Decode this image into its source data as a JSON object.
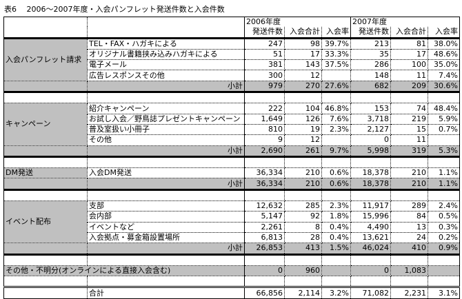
{
  "title": "表6　 2006～2007年度・入会パンフレット発送件数と入会件数",
  "header": {
    "years": [
      "2006年度",
      "2007年度"
    ],
    "columns": [
      "発送件数",
      "入会合計",
      "入会率",
      "発送件数",
      "入会合計",
      "入会率"
    ]
  },
  "colors": {
    "shade": "#c0c0c0"
  },
  "groups": [
    {
      "label": "入会パンフレット請求",
      "rows": [
        [
          "TEL・FAX・ハガキによる",
          "247",
          "98",
          "39.7%",
          "213",
          "81",
          "38.0%"
        ],
        [
          "オリジナル書籍挟み込みハガキによる",
          "51",
          "17",
          "33.3%",
          "35",
          "17",
          "48.6%"
        ],
        [
          "電子メール",
          "381",
          "143",
          "37.5%",
          "286",
          "100",
          "35.0%"
        ],
        [
          "広告レスポンスその他",
          "300",
          "12",
          "",
          "148",
          "11",
          "7.4%"
        ]
      ],
      "subtotal": [
        "小計",
        "979",
        "270",
        "27.6%",
        "682",
        "209",
        "30.6%"
      ]
    },
    {
      "label": "キャンペーン",
      "rows": [
        [
          "紹介キャンペーン",
          "222",
          "104",
          "46.8%",
          "153",
          "74",
          "48.4%"
        ],
        [
          "お試し入会／野鳥誌プレゼントキャンペーン",
          "1,649",
          "126",
          "7.6%",
          "3,718",
          "219",
          "5.9%"
        ],
        [
          "普及室扱い小冊子",
          "810",
          "19",
          "2.3%",
          "2,127",
          "15",
          "0.7%"
        ],
        [
          "その他",
          "9",
          "12",
          "",
          "0",
          "11",
          ""
        ]
      ],
      "subtotal": [
        "小計",
        "2,690",
        "261",
        "9.7%",
        "5,998",
        "319",
        "5.3%"
      ]
    },
    {
      "label": "DM発送",
      "rows": [
        [
          "入会DM発送",
          "36,334",
          "210",
          "0.6%",
          "18,378",
          "210",
          "1.1%"
        ]
      ],
      "subtotal": [
        "小計",
        "36,334",
        "210",
        "0.6%",
        "18,378",
        "210",
        "1.1%"
      ]
    },
    {
      "label": "イベント配布",
      "rows": [
        [
          "支部",
          "12,632",
          "285",
          "2.3%",
          "11,917",
          "289",
          "2.4%"
        ],
        [
          "会内部",
          "5,147",
          "92",
          "1.8%",
          "15,996",
          "84",
          "0.5%"
        ],
        [
          "イベントなど",
          "2,261",
          "8",
          "0.4%",
          "4,490",
          "13",
          "0.3%"
        ],
        [
          "入会拠点・募金箱設置場所",
          "6,813",
          "28",
          "0.4%",
          "13,621",
          "24",
          "0.2%"
        ]
      ],
      "subtotal": [
        "小計",
        "26,853",
        "413",
        "1.5%",
        "46,024",
        "410",
        "0.9%"
      ]
    }
  ],
  "other": [
    "その他・不明分(オンラインによる直接入会含む)",
    "0",
    "960",
    "",
    "0",
    "1,083",
    ""
  ],
  "total": [
    "合計",
    "66,856",
    "2,114",
    "3.2%",
    "71,082",
    "2,231",
    "3.1%"
  ]
}
